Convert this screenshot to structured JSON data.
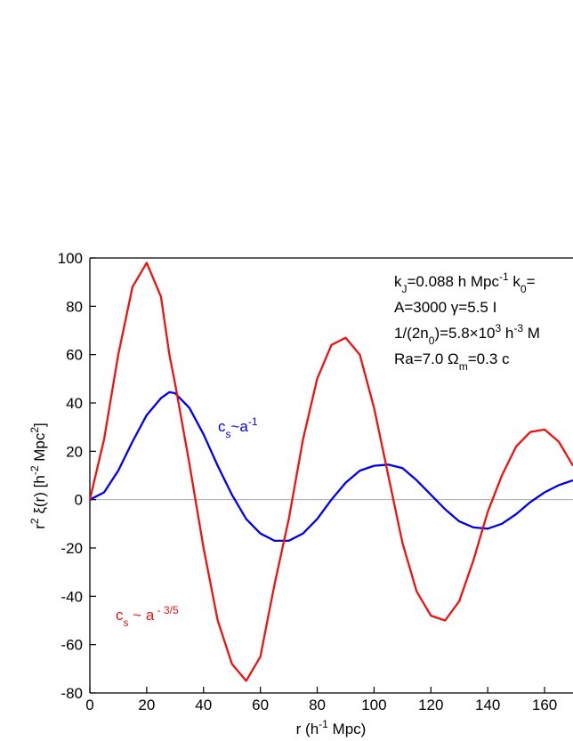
{
  "chart_data": {
    "type": "line",
    "x_label": [
      {
        "t": "r (h"
      },
      {
        "sup": "-1"
      },
      {
        "t": " Mpc)"
      }
    ],
    "y_label": [
      {
        "t": "r"
      },
      {
        "sup": "2"
      },
      {
        "t": " ξ(r)  [h"
      },
      {
        "sup": "-2"
      },
      {
        "t": " Mpc"
      },
      {
        "sup": "2"
      },
      {
        "t": "]"
      }
    ],
    "x": [
      0,
      5,
      10,
      15,
      20,
      25,
      28,
      30,
      35,
      40,
      45,
      50,
      55,
      60,
      65,
      70,
      75,
      80,
      85,
      90,
      95,
      100,
      105,
      110,
      115,
      120,
      125,
      130,
      135,
      140,
      145,
      150,
      155,
      160,
      165,
      170
    ],
    "series": [
      {
        "name": "c_s~a^-1",
        "color": "#0000ee",
        "values": [
          0,
          3,
          12,
          24,
          35,
          42,
          44.5,
          44,
          38,
          27,
          14,
          2,
          -8,
          -14,
          -17,
          -17,
          -14,
          -8,
          0,
          7,
          12,
          14,
          14.5,
          13,
          8,
          2,
          -4,
          -9,
          -11.5,
          -12,
          -10,
          -6,
          -1,
          3,
          6,
          8
        ]
      },
      {
        "name": "c_s ~ a^-3/5",
        "color": "#ee1111",
        "values": [
          0,
          25,
          60,
          88,
          98,
          84,
          60,
          48,
          15,
          -20,
          -50,
          -68,
          -75,
          -65,
          -35,
          -8,
          25,
          50,
          64,
          67,
          60,
          38,
          10,
          -18,
          -38,
          -48,
          -50,
          -42,
          -25,
          -5,
          10,
          22,
          28,
          29,
          24,
          14
        ]
      }
    ],
    "series_labels": [
      [
        {
          "t": "c"
        },
        {
          "sub": "s"
        },
        {
          "t": "~a"
        },
        {
          "sup": "-1"
        }
      ],
      [
        {
          "t": "c"
        },
        {
          "sub": "s"
        },
        {
          "t": " ~ a"
        },
        {
          "sup": " - 3/5"
        }
      ]
    ],
    "annotations": [
      [
        {
          "t": "k"
        },
        {
          "sub": "J"
        },
        {
          "t": "=0.088 h Mpc"
        },
        {
          "sup": "-1"
        },
        {
          "t": "  k"
        },
        {
          "sub": "0"
        },
        {
          "t": "="
        }
      ],
      [
        {
          "t": "A=3000       γ=5.5       I"
        }
      ],
      [
        {
          "t": "1/(2n"
        },
        {
          "sub": "0"
        },
        {
          "t": ")=5.8×10"
        },
        {
          "sup": "3"
        },
        {
          "t": " h"
        },
        {
          "sup": "-3"
        },
        {
          "t": " M"
        }
      ],
      [
        {
          "t": "Ra=7.0      Ω"
        },
        {
          "sub": "m"
        },
        {
          "t": "=0.3    c"
        }
      ]
    ],
    "xlim": [
      0,
      170
    ],
    "ylim": [
      -80,
      100
    ],
    "xticks": [
      0,
      20,
      40,
      60,
      80,
      100,
      120,
      140,
      160
    ],
    "yticks": [
      -80,
      -60,
      -40,
      -20,
      0,
      20,
      40,
      60,
      80,
      100
    ],
    "zero_line": true
  }
}
